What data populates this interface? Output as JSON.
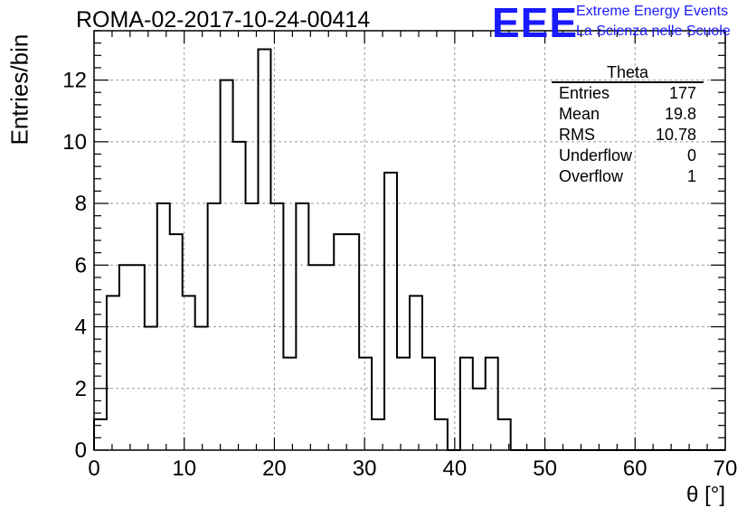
{
  "header": {
    "run_title": "ROMA-02-2017-10-24-00414",
    "logo_text": "EEE",
    "logo_line1": "Extreme Energy Events",
    "logo_line2": "La Scienza nelle Scuole",
    "logo_color": "#1a1aff"
  },
  "stats_box": {
    "title": "Theta",
    "rows": [
      {
        "label": "Entries",
        "value": "177"
      },
      {
        "label": "Mean",
        "value": "19.8"
      },
      {
        "label": "RMS",
        "value": "10.78"
      },
      {
        "label": "Underflow",
        "value": "0"
      },
      {
        "label": "Overflow",
        "value": "1"
      }
    ]
  },
  "chart_data": {
    "type": "histogram",
    "xlabel": "θ [°]",
    "ylabel": "Entries/bin",
    "xlim": [
      0,
      70
    ],
    "ylim": [
      0,
      13.6
    ],
    "xticks": [
      0,
      10,
      20,
      30,
      40,
      50,
      60,
      70
    ],
    "yticks": [
      0,
      2,
      4,
      6,
      8,
      10,
      12
    ],
    "grid": true,
    "bin_width": 1.4,
    "bin_start": 0,
    "values": [
      1,
      5,
      6,
      6,
      4,
      8,
      7,
      5,
      4,
      8,
      12,
      10,
      8,
      13,
      8,
      3,
      8,
      6,
      6,
      7,
      7,
      3,
      1,
      9,
      3,
      5,
      3,
      1,
      0,
      3,
      2,
      3,
      1,
      0,
      0,
      0,
      0,
      0,
      0,
      0,
      0,
      0,
      0,
      0,
      0,
      0,
      0,
      0,
      0,
      0
    ],
    "line_color": "#000000",
    "grid_color": "#9a9a9a"
  }
}
